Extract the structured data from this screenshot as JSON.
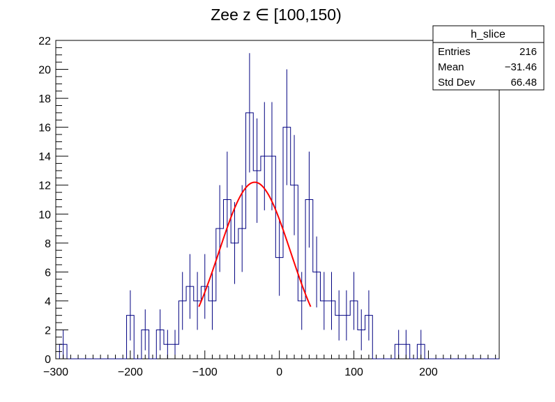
{
  "chart_data": {
    "type": "histogram",
    "title": "Zee z ∈ [100,150)",
    "xlabel": "",
    "ylabel": "",
    "xlim": [
      -300,
      295
    ],
    "ylim": [
      0,
      22
    ],
    "grid": false,
    "bin_width": 10,
    "x_ticks": [
      -300,
      -200,
      -100,
      0,
      100,
      200
    ],
    "x_tick_labels": [
      "−300",
      "−200",
      "−100",
      "0",
      "100",
      "200"
    ],
    "y_ticks": [
      0,
      2,
      4,
      6,
      8,
      10,
      12,
      14,
      16,
      18,
      20,
      22
    ],
    "y_tick_labels": [
      "0",
      "2",
      "4",
      "6",
      "8",
      "10",
      "12",
      "14",
      "16",
      "18",
      "20",
      "22"
    ],
    "series": [
      {
        "kind": "histogram",
        "color": "#000080",
        "bins": [
          {
            "x": -290,
            "y": 1
          },
          {
            "x": -200,
            "y": 3
          },
          {
            "x": -180,
            "y": 2
          },
          {
            "x": -160,
            "y": 2
          },
          {
            "x": -150,
            "y": 1
          },
          {
            "x": -140,
            "y": 1
          },
          {
            "x": -130,
            "y": 4
          },
          {
            "x": -120,
            "y": 5
          },
          {
            "x": -110,
            "y": 4
          },
          {
            "x": -100,
            "y": 5
          },
          {
            "x": -90,
            "y": 4
          },
          {
            "x": -80,
            "y": 9
          },
          {
            "x": -70,
            "y": 11
          },
          {
            "x": -60,
            "y": 8
          },
          {
            "x": -50,
            "y": 9
          },
          {
            "x": -40,
            "y": 17
          },
          {
            "x": -30,
            "y": 13
          },
          {
            "x": -20,
            "y": 14
          },
          {
            "x": -10,
            "y": 14
          },
          {
            "x": 0,
            "y": 7
          },
          {
            "x": 10,
            "y": 16
          },
          {
            "x": 20,
            "y": 12
          },
          {
            "x": 30,
            "y": 4
          },
          {
            "x": 40,
            "y": 11
          },
          {
            "x": 50,
            "y": 6
          },
          {
            "x": 60,
            "y": 4
          },
          {
            "x": 70,
            "y": 4
          },
          {
            "x": 80,
            "y": 3
          },
          {
            "x": 90,
            "y": 3
          },
          {
            "x": 100,
            "y": 4
          },
          {
            "x": 110,
            "y": 2
          },
          {
            "x": 120,
            "y": 3
          },
          {
            "x": 160,
            "y": 1
          },
          {
            "x": 170,
            "y": 1
          },
          {
            "x": 190,
            "y": 1
          }
        ]
      },
      {
        "kind": "fit",
        "color": "#ff0000",
        "function": "gaus",
        "amplitude": 12.2,
        "mean": -33,
        "sigma": 48,
        "xrange": [
          -108,
          42
        ]
      }
    ],
    "stats_box": {
      "title": "h_slice",
      "rows": [
        {
          "label": "Entries",
          "value": "216"
        },
        {
          "label": "Mean",
          "value": "−31.46"
        },
        {
          "label": "Std Dev",
          "value": "66.48"
        }
      ]
    }
  }
}
